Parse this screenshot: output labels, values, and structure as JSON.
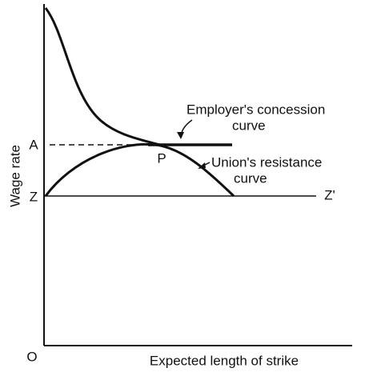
{
  "axes": {
    "y_label": "Wage rate",
    "x_label": "Expected length of strike",
    "origin": "O"
  },
  "points": {
    "a": "A",
    "z": "Z",
    "z_prime": "Z'",
    "p": "P"
  },
  "curves": {
    "employer": {
      "label_line1": "Employer's concession",
      "label_line2": "curve"
    },
    "union": {
      "label_line1": "Union's resistance",
      "label_line2": "curve"
    }
  }
}
